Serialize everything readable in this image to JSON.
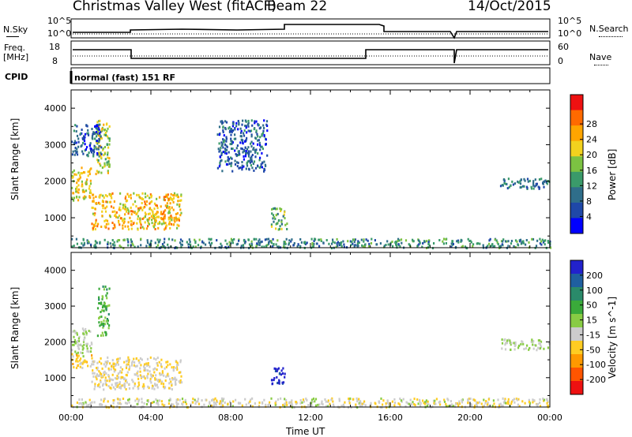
{
  "header": {
    "title": "Christmas Valley West (fitACF)",
    "beam": "Beam 22",
    "date": "14/Oct/2015"
  },
  "params": {
    "nsky_label": "N.Sky",
    "nsky_ticks": [
      "10^5",
      "10^0"
    ],
    "nsearch_label": "N.Search",
    "nsearch_ticks": [
      "10^5",
      "10^0"
    ],
    "freq_label": "Freq.",
    "freq_unit": "[MHz]",
    "freq_ticks": [
      "18",
      "8"
    ],
    "nave_label": "Nave",
    "nave_ticks": [
      "60",
      "0"
    ],
    "cpid_label": "CPID",
    "cpid_value": "normal (fast) 151 RF"
  },
  "xaxis": {
    "label": "Time UT",
    "ticks": [
      "00:00",
      "04:00",
      "08:00",
      "12:00",
      "16:00",
      "20:00",
      "00:00"
    ]
  },
  "chart_data": [
    {
      "type": "heatmap",
      "panel": "power",
      "ylabel": "Slant Range [km]",
      "ylim": [
        180,
        4500
      ],
      "yticks": [
        1000,
        2000,
        3000,
        4000
      ],
      "x_range_hours": [
        0,
        24
      ],
      "colorbar": {
        "label": "Power [dB]",
        "ticks": [
          "4",
          "8",
          "12",
          "16",
          "20",
          "24",
          "28"
        ],
        "colors": [
          "#0000ff",
          "#1f48a8",
          "#2f6e8a",
          "#3a9a6a",
          "#7cc242",
          "#f2d21e",
          "#ffa500",
          "#ff6a00",
          "#ee1111"
        ]
      },
      "echo_regions": [
        {
          "t0": 0.0,
          "t1": 1.0,
          "r0": 1500,
          "r1": 2400,
          "level": 20
        },
        {
          "t0": 1.0,
          "t1": 5.5,
          "r0": 700,
          "r1": 1700,
          "level": 22
        },
        {
          "t0": 1.2,
          "t1": 1.9,
          "r0": 2200,
          "r1": 3700,
          "level": 18
        },
        {
          "t0": 0.0,
          "t1": 1.5,
          "r0": 2700,
          "r1": 3600,
          "level": 6
        },
        {
          "t0": 7.3,
          "t1": 9.8,
          "r0": 2300,
          "r1": 3700,
          "level": 6
        },
        {
          "t0": 10.0,
          "t1": 10.8,
          "r0": 700,
          "r1": 1300,
          "level": 14
        },
        {
          "t0": 21.5,
          "t1": 24.0,
          "r0": 1800,
          "r1": 2100,
          "level": 8
        },
        {
          "t0": 0.0,
          "t1": 24.0,
          "r0": 200,
          "r1": 450,
          "level": 10
        }
      ]
    },
    {
      "type": "heatmap",
      "panel": "velocity",
      "ylabel": "Slant Range [km]",
      "ylim": [
        180,
        4500
      ],
      "yticks": [
        1000,
        2000,
        3000,
        4000
      ],
      "x_range_hours": [
        0,
        24
      ],
      "colorbar": {
        "label": "Velocity [m s^-1]",
        "ticks": [
          "200",
          "100",
          "50",
          "15",
          "-15",
          "-50",
          "-100",
          "-200"
        ],
        "colors": [
          "#2222cc",
          "#1f5fa0",
          "#2a8a6a",
          "#3aaa3a",
          "#88cc44",
          "#cccccc",
          "#ffcc22",
          "#ff9900",
          "#ff5500",
          "#ee1111"
        ]
      },
      "echo_regions": [
        {
          "t0": 0.0,
          "t1": 1.0,
          "r0": 1600,
          "r1": 2400,
          "level": 0
        },
        {
          "t0": 0.0,
          "t1": 1.0,
          "r0": 1300,
          "r1": 1700,
          "level": -60
        },
        {
          "t0": 1.0,
          "t1": 5.5,
          "r0": 700,
          "r1": 1600,
          "level": -40
        },
        {
          "t0": 1.3,
          "t1": 1.9,
          "r0": 2200,
          "r1": 3600,
          "level": 60
        },
        {
          "t0": 10.0,
          "t1": 10.7,
          "r0": 800,
          "r1": 1300,
          "level": 200
        },
        {
          "t0": 21.5,
          "t1": 24.0,
          "r0": 1800,
          "r1": 2100,
          "level": 0
        },
        {
          "t0": 0.0,
          "t1": 24.0,
          "r0": 200,
          "r1": 450,
          "level": -30
        }
      ]
    }
  ]
}
